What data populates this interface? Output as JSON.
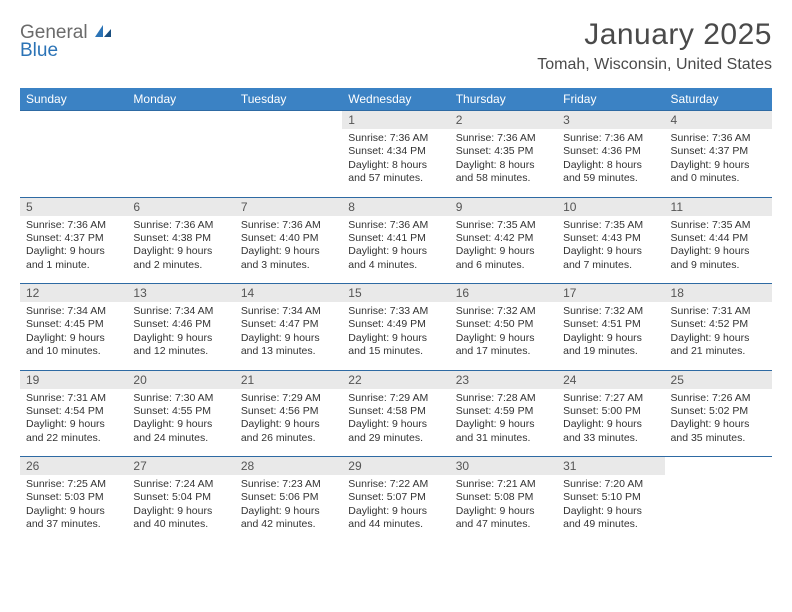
{
  "logo": {
    "line1": "General",
    "line2": "Blue"
  },
  "title": "January 2025",
  "location": "Tomah, Wisconsin, United States",
  "weekdays": [
    "Sunday",
    "Monday",
    "Tuesday",
    "Wednesday",
    "Thursday",
    "Friday",
    "Saturday"
  ],
  "colors": {
    "header_bg": "#3b82c4",
    "header_text": "#ffffff",
    "daynum_bg": "#e9e9e9",
    "row_border": "#2e6aa3",
    "text": "#333333",
    "title_text": "#4a4a4a",
    "logo_gray": "#6b6b6b",
    "logo_blue": "#2b73b6"
  },
  "weeks": [
    [
      null,
      null,
      null,
      {
        "n": "1",
        "sr": "Sunrise: 7:36 AM",
        "ss": "Sunset: 4:34 PM",
        "dl": "Daylight: 8 hours and 57 minutes."
      },
      {
        "n": "2",
        "sr": "Sunrise: 7:36 AM",
        "ss": "Sunset: 4:35 PM",
        "dl": "Daylight: 8 hours and 58 minutes."
      },
      {
        "n": "3",
        "sr": "Sunrise: 7:36 AM",
        "ss": "Sunset: 4:36 PM",
        "dl": "Daylight: 8 hours and 59 minutes."
      },
      {
        "n": "4",
        "sr": "Sunrise: 7:36 AM",
        "ss": "Sunset: 4:37 PM",
        "dl": "Daylight: 9 hours and 0 minutes."
      }
    ],
    [
      {
        "n": "5",
        "sr": "Sunrise: 7:36 AM",
        "ss": "Sunset: 4:37 PM",
        "dl": "Daylight: 9 hours and 1 minute."
      },
      {
        "n": "6",
        "sr": "Sunrise: 7:36 AM",
        "ss": "Sunset: 4:38 PM",
        "dl": "Daylight: 9 hours and 2 minutes."
      },
      {
        "n": "7",
        "sr": "Sunrise: 7:36 AM",
        "ss": "Sunset: 4:40 PM",
        "dl": "Daylight: 9 hours and 3 minutes."
      },
      {
        "n": "8",
        "sr": "Sunrise: 7:36 AM",
        "ss": "Sunset: 4:41 PM",
        "dl": "Daylight: 9 hours and 4 minutes."
      },
      {
        "n": "9",
        "sr": "Sunrise: 7:35 AM",
        "ss": "Sunset: 4:42 PM",
        "dl": "Daylight: 9 hours and 6 minutes."
      },
      {
        "n": "10",
        "sr": "Sunrise: 7:35 AM",
        "ss": "Sunset: 4:43 PM",
        "dl": "Daylight: 9 hours and 7 minutes."
      },
      {
        "n": "11",
        "sr": "Sunrise: 7:35 AM",
        "ss": "Sunset: 4:44 PM",
        "dl": "Daylight: 9 hours and 9 minutes."
      }
    ],
    [
      {
        "n": "12",
        "sr": "Sunrise: 7:34 AM",
        "ss": "Sunset: 4:45 PM",
        "dl": "Daylight: 9 hours and 10 minutes."
      },
      {
        "n": "13",
        "sr": "Sunrise: 7:34 AM",
        "ss": "Sunset: 4:46 PM",
        "dl": "Daylight: 9 hours and 12 minutes."
      },
      {
        "n": "14",
        "sr": "Sunrise: 7:34 AM",
        "ss": "Sunset: 4:47 PM",
        "dl": "Daylight: 9 hours and 13 minutes."
      },
      {
        "n": "15",
        "sr": "Sunrise: 7:33 AM",
        "ss": "Sunset: 4:49 PM",
        "dl": "Daylight: 9 hours and 15 minutes."
      },
      {
        "n": "16",
        "sr": "Sunrise: 7:32 AM",
        "ss": "Sunset: 4:50 PM",
        "dl": "Daylight: 9 hours and 17 minutes."
      },
      {
        "n": "17",
        "sr": "Sunrise: 7:32 AM",
        "ss": "Sunset: 4:51 PM",
        "dl": "Daylight: 9 hours and 19 minutes."
      },
      {
        "n": "18",
        "sr": "Sunrise: 7:31 AM",
        "ss": "Sunset: 4:52 PM",
        "dl": "Daylight: 9 hours and 21 minutes."
      }
    ],
    [
      {
        "n": "19",
        "sr": "Sunrise: 7:31 AM",
        "ss": "Sunset: 4:54 PM",
        "dl": "Daylight: 9 hours and 22 minutes."
      },
      {
        "n": "20",
        "sr": "Sunrise: 7:30 AM",
        "ss": "Sunset: 4:55 PM",
        "dl": "Daylight: 9 hours and 24 minutes."
      },
      {
        "n": "21",
        "sr": "Sunrise: 7:29 AM",
        "ss": "Sunset: 4:56 PM",
        "dl": "Daylight: 9 hours and 26 minutes."
      },
      {
        "n": "22",
        "sr": "Sunrise: 7:29 AM",
        "ss": "Sunset: 4:58 PM",
        "dl": "Daylight: 9 hours and 29 minutes."
      },
      {
        "n": "23",
        "sr": "Sunrise: 7:28 AM",
        "ss": "Sunset: 4:59 PM",
        "dl": "Daylight: 9 hours and 31 minutes."
      },
      {
        "n": "24",
        "sr": "Sunrise: 7:27 AM",
        "ss": "Sunset: 5:00 PM",
        "dl": "Daylight: 9 hours and 33 minutes."
      },
      {
        "n": "25",
        "sr": "Sunrise: 7:26 AM",
        "ss": "Sunset: 5:02 PM",
        "dl": "Daylight: 9 hours and 35 minutes."
      }
    ],
    [
      {
        "n": "26",
        "sr": "Sunrise: 7:25 AM",
        "ss": "Sunset: 5:03 PM",
        "dl": "Daylight: 9 hours and 37 minutes."
      },
      {
        "n": "27",
        "sr": "Sunrise: 7:24 AM",
        "ss": "Sunset: 5:04 PM",
        "dl": "Daylight: 9 hours and 40 minutes."
      },
      {
        "n": "28",
        "sr": "Sunrise: 7:23 AM",
        "ss": "Sunset: 5:06 PM",
        "dl": "Daylight: 9 hours and 42 minutes."
      },
      {
        "n": "29",
        "sr": "Sunrise: 7:22 AM",
        "ss": "Sunset: 5:07 PM",
        "dl": "Daylight: 9 hours and 44 minutes."
      },
      {
        "n": "30",
        "sr": "Sunrise: 7:21 AM",
        "ss": "Sunset: 5:08 PM",
        "dl": "Daylight: 9 hours and 47 minutes."
      },
      {
        "n": "31",
        "sr": "Sunrise: 7:20 AM",
        "ss": "Sunset: 5:10 PM",
        "dl": "Daylight: 9 hours and 49 minutes."
      },
      null
    ]
  ]
}
